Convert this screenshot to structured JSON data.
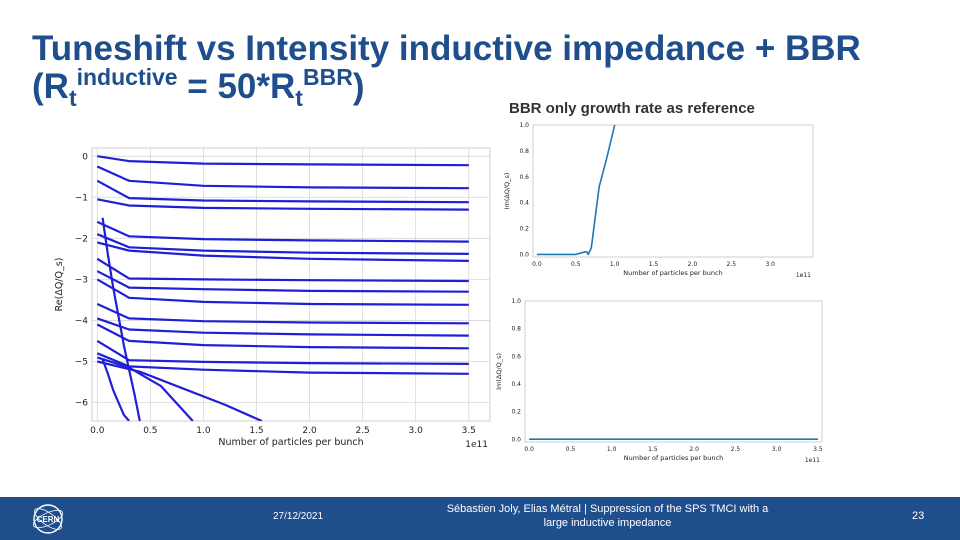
{
  "slide": {
    "title_line1": "Tuneshift vs Intensity inductive impedance + BBR",
    "title_open": "(R",
    "title_t1": "t",
    "title_sup1": "inductive",
    "title_mid": " = 50*R",
    "title_t2": "t",
    "title_sup2": "BBR",
    "title_close": ")",
    "subtitle": "BBR only growth rate as reference",
    "footer_date": "27/12/2021",
    "footer_credit": "Sébastien Joly, Elias Métral | Suppression of the SPS TMCI with a large inductive impedance",
    "page_number": "23",
    "logo_text": "CERN",
    "colors": {
      "title": "#1f4e8c",
      "footer": "#1f4e8c",
      "main_series": "#1f1fd6",
      "growth_series": "#1f77b4"
    }
  },
  "chart_data": [
    {
      "type": "line",
      "xlabel": "Number of particles per bunch",
      "ylabel": "Re(ΔQ/Q_s)",
      "x_offset_label": "1e11",
      "xlim": [
        -0.05,
        3.7
      ],
      "ylim": [
        -6.45,
        0.2
      ],
      "xticks": [
        "0.0",
        "0.5",
        "1.0",
        "1.5",
        "2.0",
        "2.5",
        "3.0",
        "3.5"
      ],
      "yticks": [
        "0",
        "−1",
        "−2",
        "−3",
        "−4",
        "−5",
        "−6"
      ],
      "grid": true,
      "series": [
        {
          "x": [
            0,
            0.3,
            1,
            2,
            3.5
          ],
          "values": [
            0,
            -0.12,
            -0.18,
            -0.2,
            -0.22
          ]
        },
        {
          "x": [
            0,
            0.3,
            1,
            2,
            3.5
          ],
          "values": [
            -0.25,
            -0.6,
            -0.72,
            -0.76,
            -0.78
          ]
        },
        {
          "x": [
            0,
            0.3,
            1,
            2,
            3.5
          ],
          "values": [
            -0.6,
            -1.02,
            -1.08,
            -1.1,
            -1.12
          ]
        },
        {
          "x": [
            0,
            0.3,
            1,
            2,
            3.5
          ],
          "values": [
            -1.05,
            -1.2,
            -1.26,
            -1.28,
            -1.3
          ]
        },
        {
          "x": [
            0,
            0.3,
            1,
            2,
            3.5
          ],
          "values": [
            -1.6,
            -1.95,
            -2.02,
            -2.05,
            -2.08
          ]
        },
        {
          "x": [
            0,
            0.3,
            1,
            2,
            3.5
          ],
          "values": [
            -1.9,
            -2.22,
            -2.3,
            -2.35,
            -2.38
          ]
        },
        {
          "x": [
            0,
            0.3,
            1,
            2,
            3.5
          ],
          "values": [
            -2.1,
            -2.3,
            -2.42,
            -2.5,
            -2.55
          ]
        },
        {
          "x": [
            0,
            0.3,
            1,
            2,
            3.5
          ],
          "values": [
            -2.5,
            -2.98,
            -3.0,
            -3.02,
            -3.04
          ]
        },
        {
          "x": [
            0,
            0.3,
            1,
            2,
            3.5
          ],
          "values": [
            -2.8,
            -3.2,
            -3.24,
            -3.28,
            -3.3
          ]
        },
        {
          "x": [
            0,
            0.3,
            1,
            2,
            3.5
          ],
          "values": [
            -3.0,
            -3.45,
            -3.55,
            -3.6,
            -3.62
          ]
        },
        {
          "x": [
            0,
            0.3,
            1,
            2,
            3.5
          ],
          "values": [
            -3.6,
            -3.95,
            -4.02,
            -4.05,
            -4.07
          ]
        },
        {
          "x": [
            0,
            0.3,
            1,
            2,
            3.5
          ],
          "values": [
            -3.95,
            -4.22,
            -4.3,
            -4.34,
            -4.37
          ]
        },
        {
          "x": [
            0,
            0.3,
            1,
            2,
            3.5
          ],
          "values": [
            -4.1,
            -4.5,
            -4.6,
            -4.65,
            -4.68
          ]
        },
        {
          "x": [
            0,
            0.3,
            1,
            2,
            3.5
          ],
          "values": [
            -4.5,
            -4.97,
            -5.01,
            -5.04,
            -5.06
          ]
        },
        {
          "x": [
            0,
            0.3,
            1,
            2,
            3.5
          ],
          "values": [
            -4.8,
            -5.12,
            -5.2,
            -5.27,
            -5.3
          ]
        },
        {
          "x": [
            0,
            0.3,
            0.6,
            0.9
          ],
          "values": [
            -4.9,
            -5.15,
            -5.6,
            -6.45
          ]
        },
        {
          "x": [
            0,
            0.4,
            0.8,
            1.2,
            1.55
          ],
          "values": [
            -5.0,
            -5.25,
            -5.65,
            -6.05,
            -6.45
          ]
        },
        {
          "x": [
            0.05,
            0.1,
            0.15,
            0.2,
            0.25,
            0.3,
            0.35,
            0.4
          ],
          "values": [
            -1.5,
            -2.4,
            -3.2,
            -3.9,
            -4.6,
            -5.2,
            -5.8,
            -6.45
          ]
        },
        {
          "x": [
            0.05,
            0.1,
            0.15,
            0.2,
            0.25,
            0.3
          ],
          "values": [
            -4.95,
            -5.3,
            -5.7,
            -6.0,
            -6.3,
            -6.45
          ]
        }
      ]
    },
    {
      "type": "line",
      "xlabel": "Number of particles per bunch",
      "ylabel": "Im(ΔQ/Q_s)",
      "x_offset_label": "1e11",
      "xlim": [
        -0.05,
        3.55
      ],
      "ylim": [
        -0.02,
        1.0
      ],
      "xticks": [
        "0.0",
        "0.5",
        "1.0",
        "1.5",
        "2.0",
        "2.5",
        "3.0"
      ],
      "yticks": [
        "0.0",
        "0.2",
        "0.4",
        "0.6",
        "0.8",
        "1.0"
      ],
      "grid": false,
      "series": [
        {
          "x": [
            0,
            0.5,
            0.62,
            0.64,
            0.66,
            0.7,
            0.8,
            0.9,
            1.0
          ],
          "values": [
            0,
            0,
            0.02,
            0.02,
            0.0,
            0.05,
            0.52,
            0.75,
            1.0
          ]
        }
      ]
    },
    {
      "type": "line",
      "xlabel": "Number of particles per bunch",
      "ylabel": "Im(ΔQ/Q_s)",
      "x_offset_label": "1e11",
      "xlim": [
        -0.05,
        3.55
      ],
      "ylim": [
        -0.02,
        1.0
      ],
      "xticks": [
        "0.0",
        "0.5",
        "1.0",
        "1.5",
        "2.0",
        "2.5",
        "3.0",
        "3.5"
      ],
      "yticks": [
        "0.0",
        "0.2",
        "0.4",
        "0.6",
        "0.8",
        "1.0"
      ],
      "grid": false,
      "series": [
        {
          "x": [
            0,
            1,
            2,
            3,
            3.5
          ],
          "values": [
            0,
            0,
            0,
            0,
            0
          ]
        }
      ]
    }
  ]
}
